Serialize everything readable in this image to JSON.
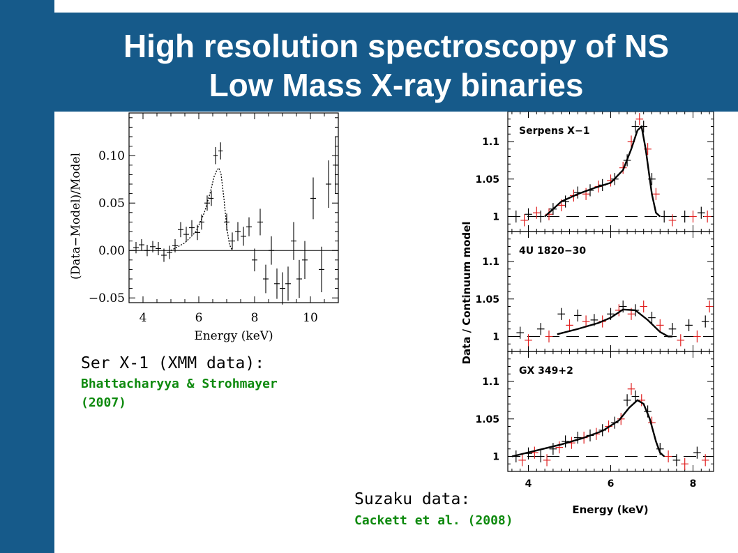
{
  "slide": {
    "title_line1": "High resolution spectroscopy of NS",
    "title_line2": "Low Mass X-ray binaries",
    "colors": {
      "band": "#165a8a",
      "title_text": "#ffffff",
      "reference_text": "#0e8a0e",
      "suzaku_red": "#e02020"
    }
  },
  "xmm_caption": {
    "title": "Ser X-1 (XMM data):",
    "ref_line1": "Bhattacharyya & Strohmayer",
    "ref_line2": "(2007)"
  },
  "suzaku_caption": {
    "title": "Suzaku data:",
    "ref": "Cackett et al. (2008)"
  },
  "chart_data": [
    {
      "type": "scatter",
      "xlabel": "Energy (keV)",
      "ylabel": "(Data−Model)/Model",
      "xlim": [
        3.5,
        11.0
      ],
      "ylim": [
        -0.055,
        0.145
      ],
      "xticks": [
        4,
        6,
        8,
        10
      ],
      "yticks": [
        -0.05,
        0.0,
        0.05,
        0.1
      ],
      "ytick_labels": [
        "−0.05",
        "0.00",
        "0.05",
        "0.10"
      ],
      "zero_line": 0.0,
      "series": [
        {
          "style": "crosses",
          "points": [
            {
              "x": 3.75,
              "y": 0.003,
              "xe": 0.1,
              "ye": 0.006
            },
            {
              "x": 3.95,
              "y": 0.006,
              "xe": 0.1,
              "ye": 0.006
            },
            {
              "x": 4.15,
              "y": 0.0,
              "xe": 0.1,
              "ye": 0.006
            },
            {
              "x": 4.35,
              "y": 0.004,
              "xe": 0.1,
              "ye": 0.006
            },
            {
              "x": 4.55,
              "y": 0.002,
              "xe": 0.1,
              "ye": 0.007
            },
            {
              "x": 4.75,
              "y": -0.005,
              "xe": 0.1,
              "ye": 0.007
            },
            {
              "x": 4.95,
              "y": -0.002,
              "xe": 0.1,
              "ye": 0.007
            },
            {
              "x": 5.15,
              "y": 0.005,
              "xe": 0.1,
              "ye": 0.007
            },
            {
              "x": 5.35,
              "y": 0.022,
              "xe": 0.1,
              "ye": 0.008
            },
            {
              "x": 5.55,
              "y": 0.017,
              "xe": 0.1,
              "ye": 0.008
            },
            {
              "x": 5.75,
              "y": 0.024,
              "xe": 0.1,
              "ye": 0.008
            },
            {
              "x": 5.95,
              "y": 0.019,
              "xe": 0.1,
              "ye": 0.008
            },
            {
              "x": 6.1,
              "y": 0.03,
              "xe": 0.1,
              "ye": 0.008
            },
            {
              "x": 6.3,
              "y": 0.05,
              "xe": 0.1,
              "ye": 0.008
            },
            {
              "x": 6.45,
              "y": 0.055,
              "xe": 0.08,
              "ye": 0.008
            },
            {
              "x": 6.6,
              "y": 0.1,
              "xe": 0.08,
              "ye": 0.009
            },
            {
              "x": 6.78,
              "y": 0.105,
              "xe": 0.08,
              "ye": 0.009
            },
            {
              "x": 7.0,
              "y": 0.03,
              "xe": 0.1,
              "ye": 0.009
            },
            {
              "x": 7.2,
              "y": 0.01,
              "xe": 0.1,
              "ye": 0.009
            },
            {
              "x": 7.4,
              "y": 0.02,
              "xe": 0.1,
              "ye": 0.01
            },
            {
              "x": 7.6,
              "y": 0.015,
              "xe": 0.1,
              "ye": 0.01
            },
            {
              "x": 7.8,
              "y": 0.025,
              "xe": 0.1,
              "ye": 0.01
            },
            {
              "x": 8.0,
              "y": -0.01,
              "xe": 0.1,
              "ye": 0.012
            },
            {
              "x": 8.2,
              "y": 0.03,
              "xe": 0.1,
              "ye": 0.014
            },
            {
              "x": 8.4,
              "y": -0.03,
              "xe": 0.1,
              "ye": 0.015
            },
            {
              "x": 8.6,
              "y": 0.0,
              "xe": 0.1,
              "ye": 0.015
            },
            {
              "x": 8.8,
              "y": -0.035,
              "xe": 0.1,
              "ye": 0.016
            },
            {
              "x": 9.0,
              "y": -0.04,
              "xe": 0.1,
              "ye": 0.017
            },
            {
              "x": 9.2,
              "y": -0.035,
              "xe": 0.1,
              "ye": 0.018
            },
            {
              "x": 9.4,
              "y": 0.01,
              "xe": 0.1,
              "ye": 0.02
            },
            {
              "x": 9.6,
              "y": -0.03,
              "xe": 0.1,
              "ye": 0.02
            },
            {
              "x": 9.8,
              "y": -0.01,
              "xe": 0.1,
              "ye": 0.02
            },
            {
              "x": 10.1,
              "y": 0.055,
              "xe": 0.1,
              "ye": 0.022
            },
            {
              "x": 10.4,
              "y": -0.02,
              "xe": 0.1,
              "ye": 0.024
            },
            {
              "x": 10.65,
              "y": 0.07,
              "xe": 0.1,
              "ye": 0.025
            },
            {
              "x": 10.9,
              "y": 0.09,
              "xe": 0.1,
              "ye": 0.03
            }
          ]
        },
        {
          "style": "dotted-model",
          "x": [
            5.0,
            5.5,
            5.9,
            6.2,
            6.4,
            6.55,
            6.65,
            6.72,
            6.8,
            6.9,
            7.0,
            7.1,
            7.2
          ],
          "y": [
            0.0,
            0.008,
            0.02,
            0.04,
            0.06,
            0.078,
            0.085,
            0.087,
            0.08,
            0.055,
            0.025,
            0.006,
            0.0
          ]
        }
      ]
    },
    {
      "type": "scatter",
      "xlabel": "Energy (keV)",
      "ylabel": "Data / Continuum model",
      "xlim": [
        3.5,
        8.5
      ],
      "xticks": [
        4,
        6,
        8
      ],
      "panels": [
        {
          "label": "Serpens X−1",
          "ylim": [
            0.98,
            1.14
          ],
          "yticks": [
            1,
            1.05,
            1.1
          ],
          "ytick_labels": [
            "1",
            "1.05",
            "1.1"
          ],
          "baseline": 1,
          "model": {
            "x": [
              4.4,
              4.8,
              5.2,
              5.6,
              6.0,
              6.3,
              6.5,
              6.65,
              6.75,
              6.85,
              7.0,
              7.1,
              7.2
            ],
            "y": [
              1.0,
              1.02,
              1.03,
              1.038,
              1.045,
              1.062,
              1.09,
              1.115,
              1.12,
              1.09,
              1.03,
              1.005,
              1.0
            ]
          },
          "data_black": [
            {
              "x": 3.7,
              "y": 1.0
            },
            {
              "x": 4.0,
              "y": 1.003
            },
            {
              "x": 4.3,
              "y": 1.0
            },
            {
              "x": 4.6,
              "y": 1.01
            },
            {
              "x": 4.9,
              "y": 1.02
            },
            {
              "x": 5.2,
              "y": 1.032
            },
            {
              "x": 5.5,
              "y": 1.035
            },
            {
              "x": 5.8,
              "y": 1.042
            },
            {
              "x": 6.1,
              "y": 1.05
            },
            {
              "x": 6.4,
              "y": 1.075
            },
            {
              "x": 6.6,
              "y": 1.12
            },
            {
              "x": 6.8,
              "y": 1.12
            },
            {
              "x": 7.0,
              "y": 1.05
            },
            {
              "x": 7.3,
              "y": 1.0
            },
            {
              "x": 7.8,
              "y": 1.0
            },
            {
              "x": 8.2,
              "y": 1.005
            }
          ],
          "data_red": [
            {
              "x": 3.9,
              "y": 0.995
            },
            {
              "x": 4.2,
              "y": 1.005
            },
            {
              "x": 4.5,
              "y": 1.003
            },
            {
              "x": 4.8,
              "y": 1.015
            },
            {
              "x": 5.1,
              "y": 1.028
            },
            {
              "x": 5.4,
              "y": 1.03
            },
            {
              "x": 5.7,
              "y": 1.04
            },
            {
              "x": 6.0,
              "y": 1.048
            },
            {
              "x": 6.3,
              "y": 1.065
            },
            {
              "x": 6.5,
              "y": 1.1
            },
            {
              "x": 6.7,
              "y": 1.13
            },
            {
              "x": 6.9,
              "y": 1.09
            },
            {
              "x": 7.1,
              "y": 1.03
            },
            {
              "x": 7.5,
              "y": 0.995
            },
            {
              "x": 8.0,
              "y": 1.0
            },
            {
              "x": 8.35,
              "y": 1.0
            }
          ]
        },
        {
          "label": "4U 1820−30",
          "ylim": [
            0.98,
            1.14
          ],
          "yticks": [
            1,
            1.05,
            1.1
          ],
          "ytick_labels": [
            "1",
            "1.05",
            "1.1"
          ],
          "baseline": 1,
          "model": {
            "x": [
              4.7,
              5.2,
              5.7,
              6.0,
              6.3,
              6.6,
              6.9,
              7.2,
              7.4,
              7.5
            ],
            "y": [
              1.003,
              1.01,
              1.018,
              1.025,
              1.036,
              1.035,
              1.022,
              1.006,
              1.0,
              1.0
            ]
          },
          "data_black": [
            {
              "x": 3.8,
              "y": 1.005
            },
            {
              "x": 4.3,
              "y": 1.01
            },
            {
              "x": 4.8,
              "y": 1.03
            },
            {
              "x": 5.2,
              "y": 1.028
            },
            {
              "x": 5.6,
              "y": 1.022
            },
            {
              "x": 6.0,
              "y": 1.03
            },
            {
              "x": 6.3,
              "y": 1.04
            },
            {
              "x": 6.6,
              "y": 1.035
            },
            {
              "x": 7.0,
              "y": 1.025
            },
            {
              "x": 7.5,
              "y": 1.01
            },
            {
              "x": 7.9,
              "y": 1.015
            },
            {
              "x": 8.3,
              "y": 1.02
            }
          ],
          "data_red": [
            {
              "x": 4.0,
              "y": 0.995
            },
            {
              "x": 4.5,
              "y": 1.0
            },
            {
              "x": 5.0,
              "y": 1.015
            },
            {
              "x": 5.4,
              "y": 1.02
            },
            {
              "x": 5.8,
              "y": 1.02
            },
            {
              "x": 6.2,
              "y": 1.035
            },
            {
              "x": 6.5,
              "y": 1.03
            },
            {
              "x": 6.8,
              "y": 1.04
            },
            {
              "x": 7.2,
              "y": 1.015
            },
            {
              "x": 7.7,
              "y": 0.995
            },
            {
              "x": 8.1,
              "y": 1.0
            },
            {
              "x": 8.4,
              "y": 1.04
            }
          ]
        },
        {
          "label": "GX 349+2",
          "ylim": [
            0.98,
            1.14
          ],
          "yticks": [
            1,
            1.05,
            1.1
          ],
          "ytick_labels": [
            "1",
            "1.05",
            "1.1"
          ],
          "baseline": 1,
          "model": {
            "x": [
              3.6,
              4.2,
              4.8,
              5.3,
              5.8,
              6.2,
              6.45,
              6.65,
              6.8,
              6.95,
              7.1,
              7.2,
              7.3
            ],
            "y": [
              1.0,
              1.008,
              1.016,
              1.024,
              1.034,
              1.048,
              1.065,
              1.075,
              1.07,
              1.05,
              1.02,
              1.005,
              1.0
            ]
          },
          "data_black": [
            {
              "x": 3.7,
              "y": 1.0
            },
            {
              "x": 4.0,
              "y": 1.004
            },
            {
              "x": 4.3,
              "y": 1.0
            },
            {
              "x": 4.6,
              "y": 1.01
            },
            {
              "x": 4.9,
              "y": 1.02
            },
            {
              "x": 5.2,
              "y": 1.025
            },
            {
              "x": 5.5,
              "y": 1.028
            },
            {
              "x": 5.8,
              "y": 1.035
            },
            {
              "x": 6.1,
              "y": 1.045
            },
            {
              "x": 6.4,
              "y": 1.075
            },
            {
              "x": 6.6,
              "y": 1.08
            },
            {
              "x": 6.9,
              "y": 1.06
            },
            {
              "x": 7.2,
              "y": 1.01
            },
            {
              "x": 7.6,
              "y": 0.995
            },
            {
              "x": 8.1,
              "y": 1.005
            }
          ],
          "data_red": [
            {
              "x": 3.85,
              "y": 0.995
            },
            {
              "x": 4.15,
              "y": 1.005
            },
            {
              "x": 4.45,
              "y": 0.995
            },
            {
              "x": 4.75,
              "y": 1.012
            },
            {
              "x": 5.05,
              "y": 1.018
            },
            {
              "x": 5.35,
              "y": 1.025
            },
            {
              "x": 5.65,
              "y": 1.03
            },
            {
              "x": 5.95,
              "y": 1.04
            },
            {
              "x": 6.25,
              "y": 1.05
            },
            {
              "x": 6.5,
              "y": 1.09
            },
            {
              "x": 6.75,
              "y": 1.075
            },
            {
              "x": 7.0,
              "y": 1.045
            },
            {
              "x": 7.4,
              "y": 1.0
            },
            {
              "x": 7.8,
              "y": 0.99
            },
            {
              "x": 8.3,
              "y": 0.995
            }
          ]
        }
      ]
    }
  ]
}
